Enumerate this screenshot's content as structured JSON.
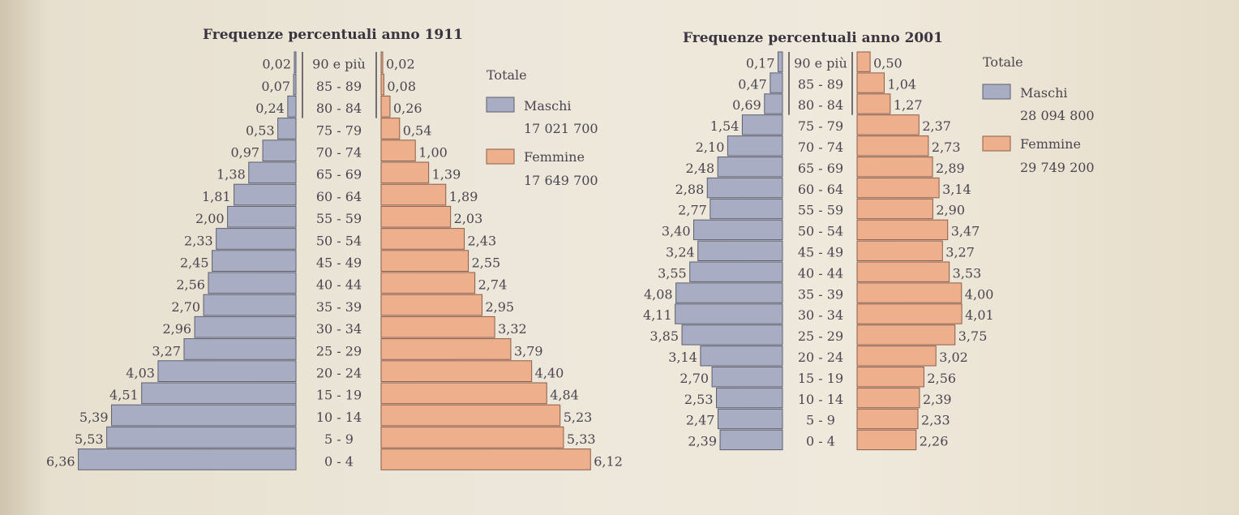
{
  "chart_data": [
    {
      "type": "population-pyramid",
      "title": "Frequenze percentuali anno 1911",
      "age_groups": [
        "90 e più",
        "85 - 89",
        "80 - 84",
        "75 - 79",
        "70 - 74",
        "65 - 69",
        "60 - 64",
        "55 - 59",
        "50 - 54",
        "45 - 49",
        "40 - 44",
        "35 - 39",
        "30 - 34",
        "25 - 29",
        "20 - 24",
        "15 - 19",
        "10 - 14",
        "5 - 9",
        "0 - 4"
      ],
      "series": [
        {
          "name": "Maschi",
          "color": "#a9adc4",
          "values": [
            0.02,
            0.07,
            0.24,
            0.53,
            0.97,
            1.38,
            1.81,
            2.0,
            2.33,
            2.45,
            2.56,
            2.7,
            2.96,
            3.27,
            4.03,
            4.51,
            5.39,
            5.53,
            6.36
          ],
          "labels": [
            "0,02",
            "0,07",
            "0,24",
            "0,53",
            "0,97",
            "1,38",
            "1,81",
            "2,00",
            "2,33",
            "2,45",
            "2,56",
            "2,70",
            "2,96",
            "3,27",
            "4,03",
            "4,51",
            "5,39",
            "5,53",
            "6,36"
          ]
        },
        {
          "name": "Femmine",
          "color": "#eeaf8c",
          "values": [
            0.02,
            0.08,
            0.26,
            0.54,
            1.0,
            1.39,
            1.89,
            2.03,
            2.43,
            2.55,
            2.74,
            2.95,
            3.32,
            3.79,
            4.4,
            4.84,
            5.23,
            5.33,
            6.12
          ],
          "labels": [
            "0,02",
            "0,08",
            "0,26",
            "0,54",
            "1,00",
            "1,39",
            "1,89",
            "2,03",
            "2,43",
            "2,55",
            "2,74",
            "2,95",
            "3,32",
            "3,79",
            "4,40",
            "4,84",
            "5,23",
            "5,33",
            "6,12"
          ]
        }
      ],
      "legend": {
        "totale": "Totale",
        "maschi": "Maschi",
        "maschi_total": "17 021 700",
        "femmine": "Femmine",
        "femmine_total": "17 649 700"
      }
    },
    {
      "type": "population-pyramid",
      "title": "Frequenze percentuali anno 2001",
      "age_groups": [
        "90 e più",
        "85 - 89",
        "80 - 84",
        "75 - 79",
        "70 - 74",
        "65 - 69",
        "60 - 64",
        "55 - 59",
        "50 - 54",
        "45 - 49",
        "40 - 44",
        "35 - 39",
        "30 - 34",
        "25 - 29",
        "20 - 24",
        "15 - 19",
        "10 - 14",
        "5 - 9",
        "0 - 4"
      ],
      "series": [
        {
          "name": "Maschi",
          "color": "#a9adc4",
          "values": [
            0.17,
            0.47,
            0.69,
            1.54,
            2.1,
            2.48,
            2.88,
            2.77,
            3.4,
            3.24,
            3.55,
            4.08,
            4.11,
            3.85,
            3.14,
            2.7,
            2.53,
            2.47,
            2.39
          ],
          "labels": [
            "0,17",
            "0,47",
            "0,69",
            "1,54",
            "2,10",
            "2,48",
            "2,88",
            "2,77",
            "3,40",
            "3,24",
            "3,55",
            "4,08",
            "4,11",
            "3,85",
            "3,14",
            "2,70",
            "2,53",
            "2,47",
            "2,39"
          ]
        },
        {
          "name": "Femmine",
          "color": "#eeaf8c",
          "values": [
            0.5,
            1.04,
            1.27,
            2.37,
            2.73,
            2.89,
            3.14,
            2.9,
            3.47,
            3.27,
            3.53,
            4.0,
            4.01,
            3.75,
            3.02,
            2.56,
            2.39,
            2.33,
            2.26
          ],
          "labels": [
            "0,50",
            "1,04",
            "1,27",
            "2,37",
            "2,73",
            "2,89",
            "3,14",
            "2,90",
            "3,47",
            "3,27",
            "3,53",
            "4,00",
            "4,01",
            "3,75",
            "3,02",
            "2,56",
            "2,39",
            "2,33",
            "2,26"
          ]
        }
      ],
      "legend": {
        "totale": "Totale",
        "maschi": "Maschi",
        "maschi_total": "28 094 800",
        "femmine": "Femmine",
        "femmine_total": "29 749 200"
      }
    }
  ]
}
